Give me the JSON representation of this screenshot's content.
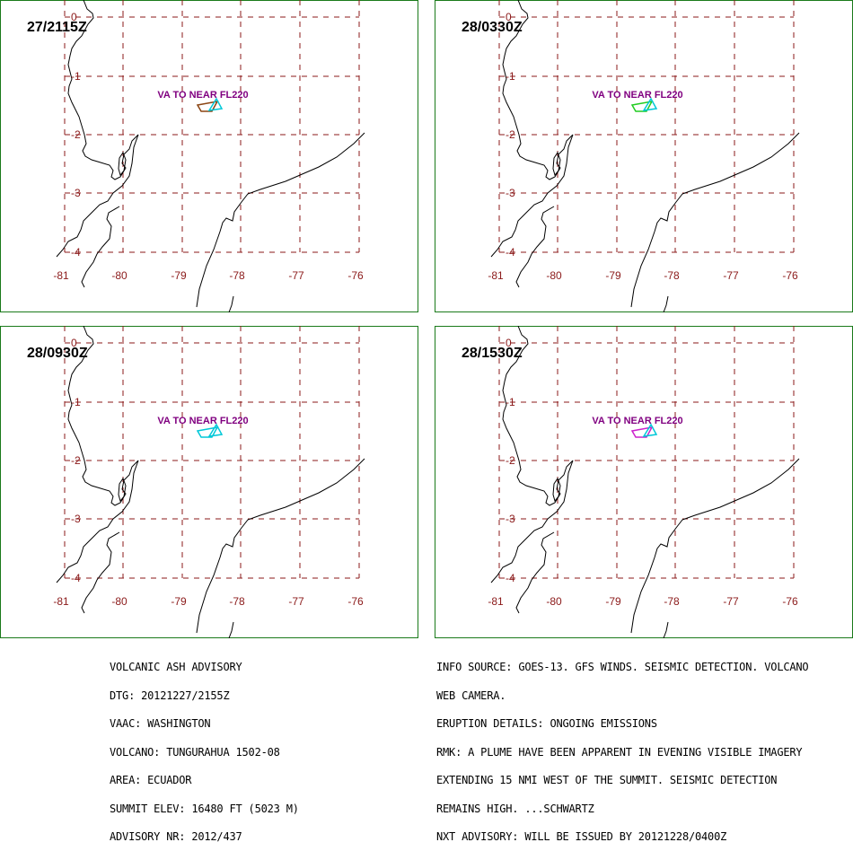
{
  "colors": {
    "frame": "#1a7a1a",
    "grid": "#8b1a1a",
    "ticks": "#8b1a1a",
    "coast": "#000000",
    "label": "#800080",
    "summit": "#00c8d8"
  },
  "grid_labels": {
    "lat": [
      "0",
      "-1",
      "-2",
      "-3",
      "-4"
    ],
    "lon": [
      "-81",
      "-80",
      "-79",
      "-78",
      "-77",
      "-76"
    ]
  },
  "panels": [
    {
      "time": "27/2115Z",
      "label": "VA TO NEAR FL220",
      "plume_color": "#8b4513"
    },
    {
      "time": "28/0330Z",
      "label": "VA TO NEAR FL220",
      "plume_color": "#22cc22"
    },
    {
      "time": "28/0930Z",
      "label": "VA TO NEAR FL220",
      "plume_color": "#00c8d8"
    },
    {
      "time": "28/1530Z",
      "label": "VA TO NEAR FL220",
      "plume_color": "#cc22cc"
    }
  ],
  "advisory_left": [
    "VOLCANIC ASH ADVISORY",
    "DTG: 20121227/2155Z",
    "VAAC: WASHINGTON",
    "VOLCANO: TUNGURAHUA 1502-08",
    "AREA: ECUADOR",
    "SUMMIT ELEV: 16480 FT (5023 M)",
    "ADVISORY NR: 2012/437"
  ],
  "advisory_right": [
    "INFO SOURCE: GOES-13. GFS WINDS. SEISMIC DETECTION. VOLCANO",
    "WEB CAMERA.",
    "ERUPTION DETAILS: ONGOING EMISSIONS",
    "RMK: A PLUME HAVE BEEN APPARENT IN EVENING VISIBLE IMAGERY",
    "EXTENDING 15 NMI WEST OF THE SUMMIT. SEISMIC DETECTION",
    "REMAINS HIGH. ...SCHWARTZ",
    "NXT ADVISORY: WILL BE ISSUED BY 20121228/0400Z"
  ]
}
